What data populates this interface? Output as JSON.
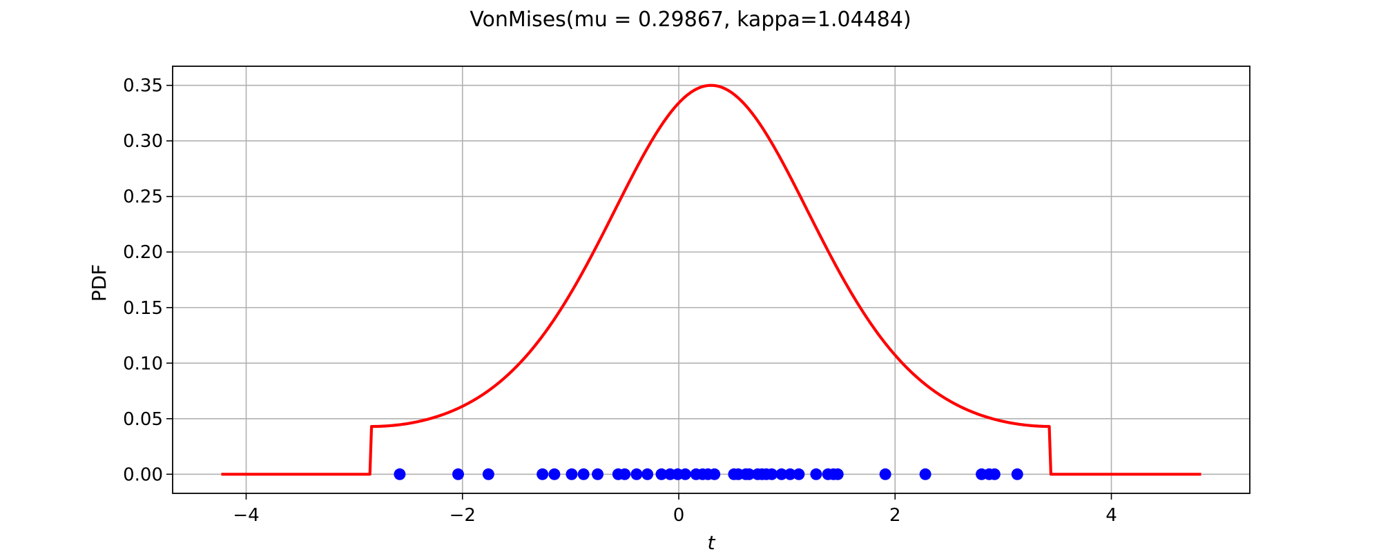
{
  "chart_data": {
    "type": "line",
    "title": "VonMises(mu = 0.29867, kappa=1.04484)",
    "xlabel": "t",
    "ylabel": "PDF",
    "xlim": [
      -4.68,
      5.28
    ],
    "ylim": [
      -0.0172,
      0.3672
    ],
    "xticks": [
      -4,
      -2,
      0,
      2,
      4
    ],
    "xtick_labels": [
      "−4",
      "−2",
      "0",
      "2",
      "4"
    ],
    "yticks": [
      0.0,
      0.05,
      0.1,
      0.15,
      0.2,
      0.25,
      0.3,
      0.35
    ],
    "ytick_labels": [
      "0.00",
      "0.05",
      "0.10",
      "0.15",
      "0.20",
      "0.25",
      "0.30",
      "0.35"
    ],
    "grid": true,
    "colors": {
      "pdf_line": "#ff0000",
      "samples": "#0000ff",
      "grid": "#b0b0b0"
    },
    "pdf_curve": {
      "mu": 0.29867,
      "kappa": 1.04484,
      "x_start": -4.23,
      "x_end": 4.83,
      "x_support_min": -2.8429,
      "x_support_max": 3.4403,
      "peak_y": 0.35,
      "edge_y": 0.043
    },
    "samples": {
      "y": 0.0,
      "x": [
        -2.58,
        -2.04,
        -1.76,
        -1.26,
        -1.15,
        -0.99,
        -0.88,
        -0.75,
        -0.56,
        -0.5,
        -0.39,
        -0.29,
        -0.16,
        -0.08,
        -0.01,
        0.06,
        0.16,
        0.22,
        0.27,
        0.33,
        0.51,
        0.55,
        0.62,
        0.65,
        0.73,
        0.77,
        0.81,
        0.86,
        0.95,
        1.03,
        1.11,
        1.27,
        1.38,
        1.43,
        1.47,
        1.91,
        2.28,
        2.8,
        2.87,
        2.92,
        3.13
      ]
    }
  }
}
